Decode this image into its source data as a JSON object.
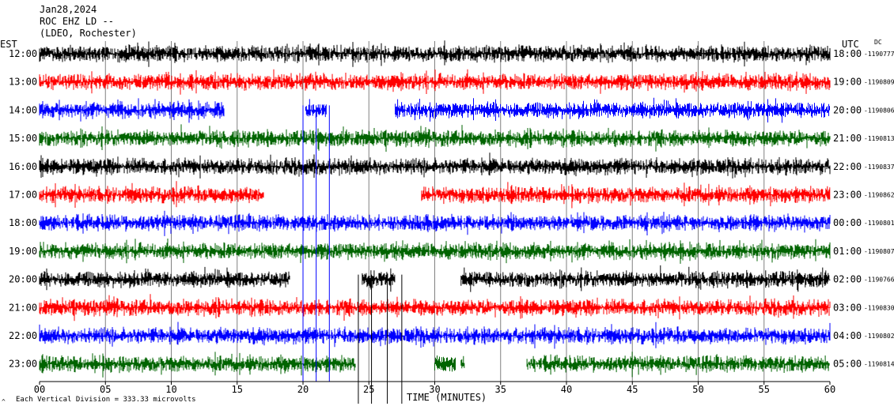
{
  "header": {
    "date": "Jan28,2024",
    "station": "ROC EHZ LD --",
    "network": "(LDEO, Rochester)"
  },
  "axes": {
    "left_label": "EST",
    "right_label": "UTC",
    "dc_label": "DC",
    "x_label": "TIME (MINUTES)",
    "footer_note": "Each Vertical Division =  333.33 microvolts",
    "footer_mark": "^"
  },
  "colors": {
    "cycle": [
      "#000000",
      "#ff0000",
      "#0000ff",
      "#006400"
    ],
    "grid": "#808080"
  },
  "chart_data": {
    "type": "line",
    "title": "ROC EHZ LD --",
    "subtitle": "(LDEO, Rochester)",
    "xlabel": "TIME (MINUTES)",
    "xlim": [
      0,
      60
    ],
    "x_ticks": [
      "00",
      "05",
      "10",
      "15",
      "20",
      "25",
      "30",
      "35",
      "40",
      "45",
      "50",
      "55",
      "60"
    ],
    "grid": true,
    "rows": [
      {
        "est": "12:00",
        "utc": "18:00",
        "dc": "-1190777",
        "color": "#000000",
        "segments": [
          [
            0,
            60
          ]
        ]
      },
      {
        "est": "13:00",
        "utc": "19:00",
        "dc": "-1190809",
        "color": "#ff0000",
        "segments": [
          [
            0,
            60
          ]
        ]
      },
      {
        "est": "14:00",
        "utc": "20:00",
        "dc": "-1190806",
        "color": "#0000ff",
        "segments": [
          [
            0,
            14
          ],
          [
            20.2,
            21.8
          ],
          [
            27,
            60
          ]
        ]
      },
      {
        "est": "15:00",
        "utc": "21:00",
        "dc": "-1190813",
        "color": "#006400",
        "segments": [
          [
            0,
            60
          ]
        ]
      },
      {
        "est": "16:00",
        "utc": "22:00",
        "dc": "-1190837",
        "color": "#000000",
        "segments": [
          [
            0,
            60
          ]
        ]
      },
      {
        "est": "17:00",
        "utc": "23:00",
        "dc": "-1190862",
        "color": "#ff0000",
        "segments": [
          [
            0,
            17
          ],
          [
            29,
            60
          ]
        ]
      },
      {
        "est": "18:00",
        "utc": "00:00",
        "dc": "-1190801",
        "color": "#0000ff",
        "segments": [
          [
            0,
            60
          ]
        ]
      },
      {
        "est": "19:00",
        "utc": "01:00",
        "dc": "-1190807",
        "color": "#006400",
        "segments": [
          [
            0,
            60
          ]
        ]
      },
      {
        "est": "20:00",
        "utc": "02:00",
        "dc": "-1190766",
        "color": "#000000",
        "segments": [
          [
            0,
            19
          ],
          [
            24.5,
            27
          ],
          [
            32,
            60
          ]
        ]
      },
      {
        "est": "21:00",
        "utc": "03:00",
        "dc": "-1190830",
        "color": "#ff0000",
        "segments": [
          [
            0,
            60
          ]
        ]
      },
      {
        "est": "22:00",
        "utc": "04:00",
        "dc": "-1190802",
        "color": "#0000ff",
        "segments": [
          [
            0,
            60
          ]
        ]
      },
      {
        "est": "23:00",
        "utc": "05:00",
        "dc": "-1190814",
        "color": "#006400",
        "segments": [
          [
            0,
            24
          ],
          [
            30,
            31.6
          ],
          [
            32,
            32.3
          ],
          [
            37,
            60
          ]
        ]
      }
    ]
  }
}
